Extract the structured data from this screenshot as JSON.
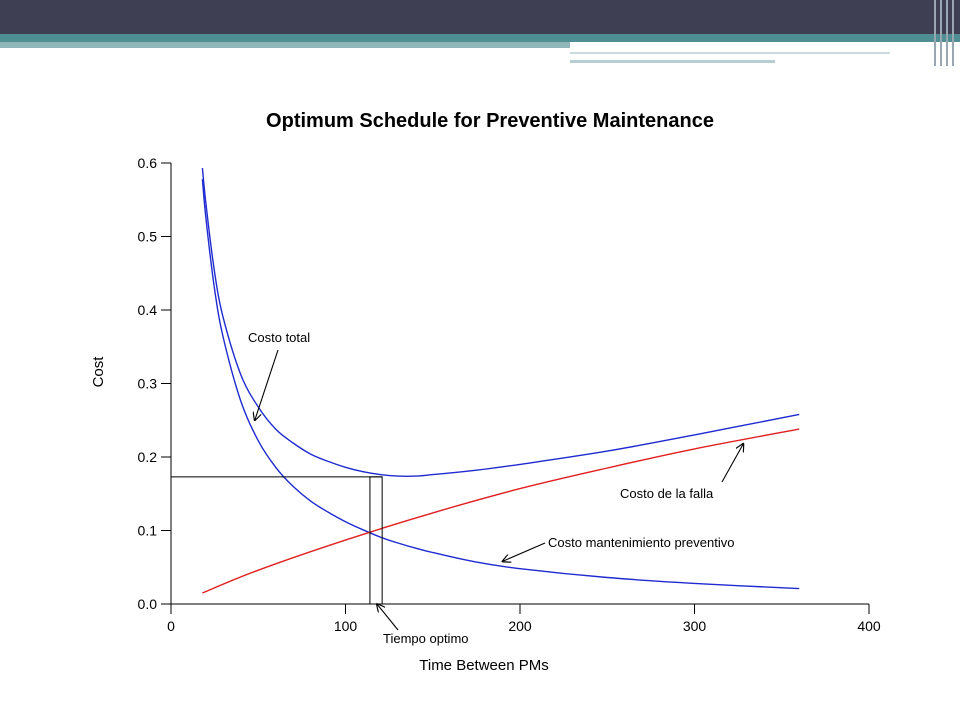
{
  "slide": {
    "colors": {
      "topbar": "#3f3f53",
      "accent": "#4f8e93",
      "accent_light": "#8fb6b9"
    }
  },
  "chart_data": {
    "type": "line",
    "title": "Optimum Schedule for Preventive Maintenance",
    "xlabel": "Time Between PMs",
    "ylabel": "Cost",
    "xlim": [
      0,
      400
    ],
    "ylim": [
      0,
      0.6
    ],
    "x_ticks": [
      "0",
      "100",
      "200",
      "300",
      "400"
    ],
    "y_ticks": [
      "0.0",
      "0.1",
      "0.2",
      "0.3",
      "0.4",
      "0.5",
      "0.6"
    ],
    "grid": false,
    "series": [
      {
        "color": "#1f2bd0",
        "x": [
          18,
          20,
          25,
          30,
          40,
          50,
          60,
          70,
          80,
          90,
          100,
          110,
          120,
          130,
          140,
          150,
          175,
          200,
          250,
          300,
          360
        ],
        "y": [
          0.593,
          0.545,
          0.451,
          0.389,
          0.312,
          0.268,
          0.238,
          0.219,
          0.204,
          0.194,
          0.186,
          0.18,
          0.176,
          0.174,
          0.174,
          0.176,
          0.182,
          0.19,
          0.208,
          0.23,
          0.258
        ]
      },
      {
        "color": "#1f2bd0",
        "x": [
          18,
          20,
          25,
          30,
          40,
          50,
          60,
          70,
          80,
          90,
          100,
          110,
          120,
          130,
          140,
          150,
          175,
          200,
          250,
          300,
          360
        ],
        "y": [
          0.578,
          0.525,
          0.428,
          0.362,
          0.276,
          0.222,
          0.186,
          0.16,
          0.14,
          0.125,
          0.112,
          0.101,
          0.091,
          0.083,
          0.076,
          0.07,
          0.057,
          0.048,
          0.036,
          0.028,
          0.021
        ]
      },
      {
        "color": "#e02020",
        "x": [
          18,
          50,
          100,
          150,
          200,
          250,
          300,
          360
        ],
        "y": [
          0.015,
          0.046,
          0.087,
          0.124,
          0.157,
          0.185,
          0.211,
          0.238
        ]
      }
    ],
    "optimum": {
      "x": 120,
      "y": 0.173,
      "band_x": [
        114,
        121
      ]
    },
    "annotations": [
      {
        "text": "Costo total",
        "arrow_to": [
          48,
          0.25
        ]
      },
      {
        "text": "Costo de la falla",
        "arrow_to": [
          328,
          0.218
        ]
      },
      {
        "text": "Costo mantenimiento preventivo",
        "arrow_to": [
          190,
          0.058
        ]
      },
      {
        "text": "Tiempo optimo",
        "arrow_to": [
          118,
          0.0
        ]
      }
    ]
  }
}
